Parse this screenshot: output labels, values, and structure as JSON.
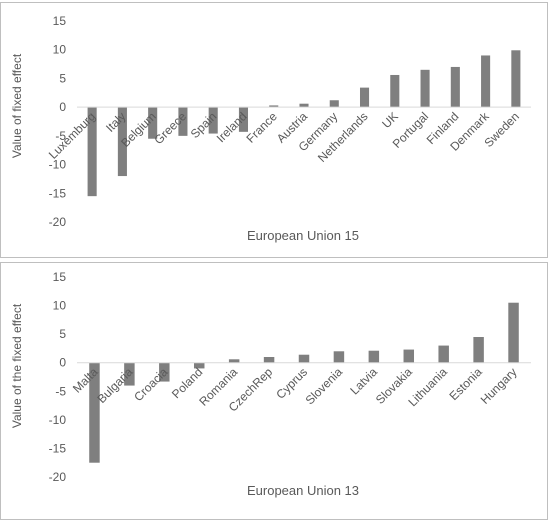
{
  "chart_data": [
    {
      "type": "bar",
      "subtitle": "European Union 15",
      "ylabel": "Value of fixed effect",
      "ylim": [
        -20,
        15
      ],
      "yticks": [
        "15",
        "10",
        "5",
        "0",
        "-5",
        "-10",
        "-15",
        "-20"
      ],
      "grid": false,
      "bar_color": "#7f7f7f",
      "categories": [
        "Luxemburg",
        "Italy",
        "Belgium",
        "Greece",
        "Spain",
        "Ireland",
        "France",
        "Austria",
        "Germany",
        "Netherlands",
        "UK",
        "Portugal",
        "Finland",
        "Denmark",
        "Sweden"
      ],
      "values": [
        -15.5,
        -12.0,
        -5.5,
        -5.0,
        -4.6,
        -4.3,
        0.3,
        0.6,
        1.2,
        3.4,
        5.6,
        6.5,
        7.0,
        9.0,
        9.9
      ]
    },
    {
      "type": "bar",
      "subtitle": "European Union 13",
      "ylabel": "Value of the fixed effect",
      "ylim": [
        -20,
        15
      ],
      "yticks": [
        "15",
        "10",
        "5",
        "0",
        "-5",
        "-10",
        "-15",
        "-20"
      ],
      "grid": false,
      "bar_color": "#7f7f7f",
      "categories": [
        "Malta",
        "Bulgaria",
        "Croacia",
        "Poland",
        "Romania",
        "CzechRep",
        "Cyprus",
        "Slovenia",
        "Latvia",
        "Slovakia",
        "Lithuania",
        "Estonia",
        "Hungary"
      ],
      "values": [
        -17.5,
        -4.0,
        -3.3,
        -1.0,
        0.6,
        1.0,
        1.4,
        2.0,
        2.1,
        2.3,
        3.0,
        4.5,
        10.5
      ]
    }
  ]
}
